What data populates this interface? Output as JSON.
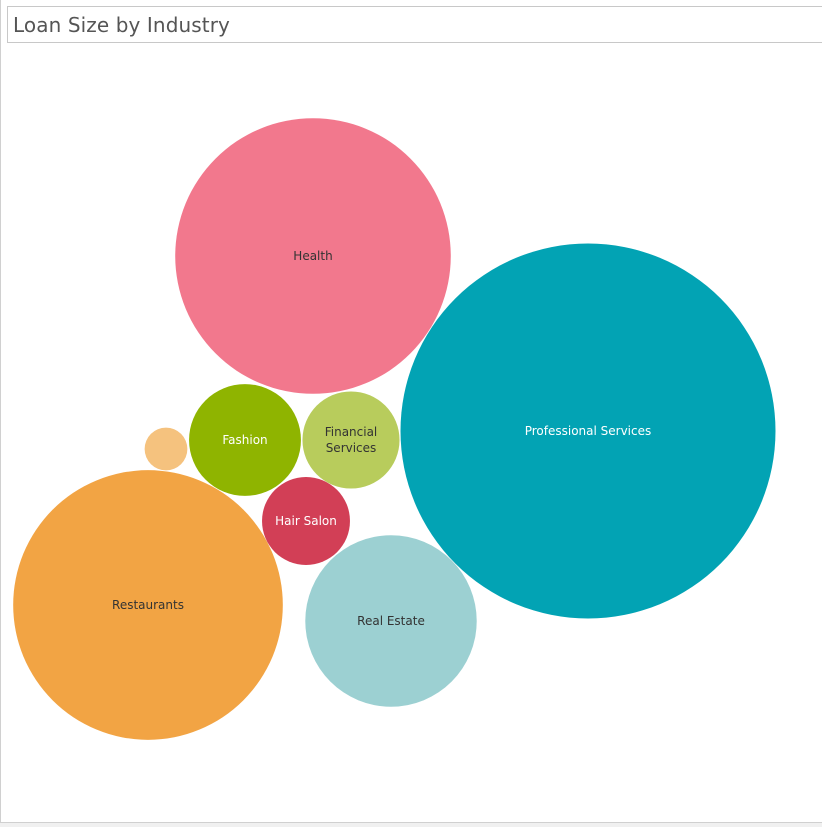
{
  "chart_data": {
    "type": "bubble",
    "title": "Loan Size by Industry",
    "bubbles": [
      {
        "category": "Professional Services",
        "label_lines": [
          "Professional Services"
        ],
        "relative_size": 1.0,
        "color": "#02a3b4",
        "label_color": "#ffffff"
      },
      {
        "category": "Health",
        "label_lines": [
          "Health"
        ],
        "relative_size": 0.54,
        "color": "#f2788d",
        "label_color": "#333333"
      },
      {
        "category": "Restaurants",
        "label_lines": [
          "Restaurants"
        ],
        "relative_size": 0.517,
        "color": "#f2a444",
        "label_color": "#333333"
      },
      {
        "category": "Real Estate",
        "label_lines": [
          "Real Estate"
        ],
        "relative_size": 0.209,
        "color": "#9cd0d2",
        "label_color": "#333333"
      },
      {
        "category": "Fashion",
        "label_lines": [
          "Fashion"
        ],
        "relative_size": 0.089,
        "color": "#8fb400",
        "label_color": "#ffffff"
      },
      {
        "category": "Financial Services",
        "label_lines": [
          "Financial",
          "Services"
        ],
        "relative_size": 0.067,
        "color": "#b8cc5c",
        "label_color": "#333333"
      },
      {
        "category": "Hair Salon",
        "label_lines": [
          "Hair Salon"
        ],
        "relative_size": 0.055,
        "color": "#d23f56",
        "label_color": "#ffffff"
      },
      {
        "category": "",
        "label_lines": [],
        "relative_size": 0.013,
        "color": "#f5c27e",
        "label_color": "#333333"
      }
    ]
  }
}
